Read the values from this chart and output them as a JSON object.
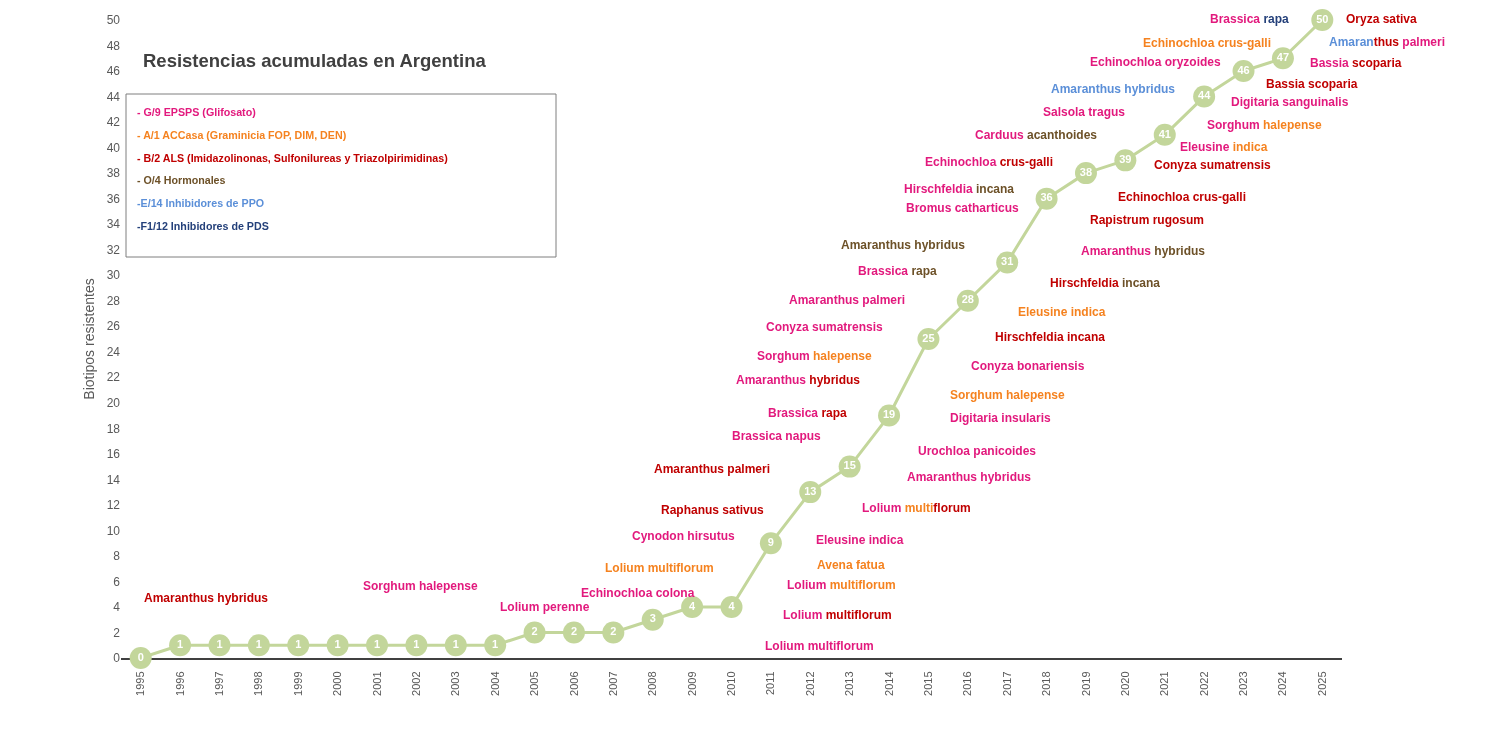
{
  "chart_data": {
    "type": "line",
    "title": "Resistencias acumuladas en Argentina",
    "ylabel": "Biotipos resistentes",
    "x": [
      1995,
      1996,
      1997,
      1998,
      1999,
      2000,
      2001,
      2002,
      2003,
      2004,
      2005,
      2006,
      2007,
      2008,
      2009,
      2010,
      2011,
      2012,
      2013,
      2014,
      2015,
      2016,
      2017,
      2018,
      2019,
      2020,
      2021,
      2022,
      2023,
      2024,
      2025
    ],
    "values": [
      0,
      1,
      1,
      1,
      1,
      1,
      1,
      1,
      1,
      1,
      2,
      2,
      2,
      3,
      4,
      4,
      9,
      13,
      15,
      19,
      25,
      28,
      31,
      36,
      38,
      39,
      41,
      44,
      46,
      47,
      50
    ],
    "color": "#c3d69b",
    "marker": "circle",
    "line_style": "solid",
    "data_labels": true,
    "xlim": [
      1994.5,
      2025.5
    ],
    "xticks": [
      1995,
      1996,
      1997,
      1998,
      1999,
      2000,
      2001,
      2002,
      2003,
      2004,
      2005,
      2006,
      2007,
      2008,
      2009,
      2010,
      2011,
      2012,
      2013,
      2014,
      2015,
      2016,
      2017,
      2018,
      2019,
      2020,
      2021,
      2022,
      2023,
      2024,
      2025
    ],
    "ylim": [
      0,
      50
    ],
    "yticks": [
      0,
      2,
      4,
      6,
      8,
      10,
      12,
      14,
      16,
      18,
      20,
      22,
      24,
      26,
      28,
      30,
      32,
      34,
      36,
      38,
      40,
      42,
      44,
      46,
      48,
      50
    ],
    "annotations": [
      "- G/9 EPSPS (Glifosato)",
      "- A/1 ACCasa (Graminicia FOP, DIM, DEN)",
      "- B/2 ALS (Imidazolinonas, Sulfonilureas y Triazolpirimidinas)",
      "- O/4 Hormonales",
      "-E/14 Inhibidores de PPO",
      "-F1/12 Inhibidores de PDS",
      "Amaranthus hybridus",
      "Sorghum halepense",
      "Lolium perenne",
      "Echinochloa colona",
      "Lolium multiflorum",
      "Cynodon hirsutus",
      "Raphanus sativus",
      "Amaranthus palmeri",
      "Brassica napus",
      "Brassica rapa",
      "Amaranthus hybridus",
      "Sorghum halepense",
      "Conyza sumatrensis",
      "Amaranthus palmeri",
      "Brassica rapa",
      "Amaranthus hybridus",
      "Amaranthus hybridus",
      "Hirschfeldia incana",
      "Eleusine indica",
      "Hirschfeldia incana",
      "Conyza bonariensis",
      "Sorghum halepense",
      "Digitaria insularis",
      "Urochloa panicoides",
      "Amaranthus hybridus",
      "Lolium multiflorum",
      "Eleusine indica",
      "Avena fatua",
      "Lolium multiflorum",
      "Lolium multiflorum",
      "Lolium multiflorum",
      "Brassica rapa",
      "Oryza sativa",
      "Amaranthus palmeri",
      "Echinochloa crus-galli",
      "Echinochloa oryzoides",
      "Bassia scoparia",
      "Amaranthus hybridus",
      "Bassia scoparia",
      "Digitaria sanguinalis",
      "Salsola tragus",
      "Sorghum halepense",
      "Carduus acanthoides",
      "Eleusine indica",
      "Conyza sumatrensis",
      "Echinochloa crus-galli",
      "Hirschfeldia incana",
      "Bromus catharticus",
      "Echinochloa crus-galli",
      "Rapistrum rugosum"
    ]
  }
}
